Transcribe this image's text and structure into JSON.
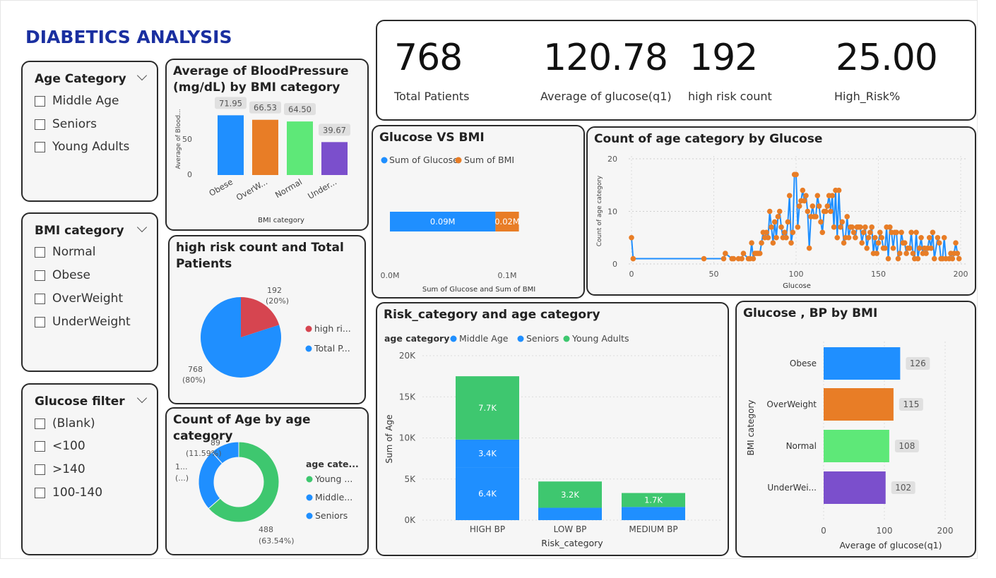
{
  "title": "DIABETICS ANALYSIS",
  "colors": {
    "blue": "#1f8fff",
    "orange": "#e87d26",
    "green": "#5ee878",
    "purple": "#7b4fcc",
    "red": "#d64550",
    "darkblue": "#1a2fa0",
    "teal_green": "#3ec76f"
  },
  "slicers": [
    {
      "title": "Age Category",
      "options": [
        "Middle Age",
        "Seniors",
        "Young Adults"
      ]
    },
    {
      "title": "BMI category",
      "options": [
        "Normal",
        "Obese",
        "OverWeight",
        "UnderWeight"
      ]
    },
    {
      "title": "Glucose filter",
      "options": [
        "(Blank)",
        "<100",
        ">140",
        "100-140"
      ]
    }
  ],
  "kpis": [
    {
      "value": "768",
      "label": "Total Patients"
    },
    {
      "value": "120.78",
      "label": "Average of glucose(q1)"
    },
    {
      "value": "192",
      "label": "high risk count"
    },
    {
      "value": "25.00",
      "label": "High_Risk%"
    }
  ],
  "bp_chart": {
    "title_line1": "Average of BloodPressure",
    "title_line2": "(mg/dL) by BMI category",
    "ylabel": "Average of Blood...",
    "xlabel": "BMI category",
    "y_ticks": [
      "0",
      "50"
    ],
    "chart_data": {
      "type": "bar",
      "categories": [
        "Obese",
        "OverW...",
        "Normal",
        "Under..."
      ],
      "values": [
        71.95,
        66.53,
        64.5,
        39.67
      ],
      "labels": [
        "71.95",
        "66.53",
        "64.50",
        "39.67"
      ],
      "ylim": [
        0,
        85
      ]
    }
  },
  "risk_pie": {
    "title_line1": "high risk count and Total",
    "title_line2": "Patients",
    "slices": [
      {
        "name": "high ri...",
        "value": 192,
        "label": "192",
        "pct": "(20%)"
      },
      {
        "name": "Total P...",
        "value": 768,
        "label": "768",
        "pct": "(80%)"
      }
    ]
  },
  "age_donut": {
    "title": "Count of Age by age category",
    "legend_title": "age cate...",
    "slices": [
      {
        "name": "Young ...",
        "value": 488,
        "label": "488",
        "pct": "(63.54%)"
      },
      {
        "name": "Middle...",
        "value": 191,
        "label": "1...",
        "pct": "(...)"
      },
      {
        "name": "Seniors",
        "value": 89,
        "label": "89",
        "pct": "(11.59%)"
      }
    ]
  },
  "glucose_bmi": {
    "title": "Glucose VS BMI",
    "legend": [
      "Sum of Glucose",
      "Sum of BMI"
    ],
    "xlabel": "Sum of Glucose and Sum of BMI",
    "x_ticks": [
      "0.0M",
      "0.1M"
    ],
    "chart_data": {
      "type": "bar",
      "orientation": "horizontal-stacked",
      "series": [
        {
          "name": "Sum of Glucose",
          "values": [
            0.09
          ],
          "label": "0.09M"
        },
        {
          "name": "Sum of BMI",
          "values": [
            0.02
          ],
          "label": "0.02M"
        }
      ],
      "xlim": [
        0,
        0.13
      ]
    }
  },
  "age_glucose": {
    "title": "Count of age category by Glucose",
    "ylabel": "Count of age category",
    "xlabel": "Glucose",
    "x_ticks": [
      "0",
      "50",
      "100",
      "150",
      "200"
    ],
    "y_ticks": [
      "0",
      "10",
      "20"
    ],
    "chart_data": {
      "type": "line",
      "x": [
        0,
        1,
        44,
        56,
        57,
        61,
        62,
        65,
        67,
        68,
        71,
        72,
        73,
        74,
        75,
        76,
        77,
        78,
        79,
        80,
        81,
        82,
        83,
        84,
        85,
        86,
        87,
        88,
        89,
        90,
        91,
        92,
        93,
        94,
        95,
        96,
        97,
        98,
        99,
        100,
        101,
        102,
        103,
        104,
        105,
        106,
        107,
        108,
        109,
        110,
        111,
        112,
        113,
        114,
        115,
        116,
        117,
        118,
        119,
        120,
        121,
        122,
        123,
        124,
        125,
        126,
        127,
        128,
        129,
        130,
        131,
        132,
        133,
        134,
        135,
        136,
        137,
        138,
        139,
        140,
        141,
        142,
        143,
        144,
        145,
        146,
        147,
        148,
        149,
        150,
        151,
        152,
        153,
        154,
        155,
        156,
        157,
        158,
        159,
        160,
        161,
        162,
        163,
        164,
        165,
        166,
        167,
        168,
        169,
        170,
        171,
        172,
        173,
        174,
        175,
        176,
        177,
        178,
        179,
        180,
        181,
        182,
        183,
        184,
        186,
        187,
        188,
        189,
        190,
        191,
        193,
        194,
        195,
        196,
        197,
        198,
        199
      ],
      "y": [
        5,
        1,
        1,
        1,
        2,
        1,
        1,
        1,
        1,
        2,
        1,
        1,
        4,
        1,
        2,
        2,
        2,
        2,
        4,
        6,
        5,
        6,
        5,
        10,
        7,
        4,
        8,
        5,
        9,
        10,
        7,
        5,
        6,
        5,
        8,
        13,
        4,
        6,
        17,
        17,
        7,
        11,
        12,
        14,
        12,
        13,
        10,
        3,
        9,
        11,
        9,
        9,
        13,
        11,
        8,
        6,
        10,
        10,
        11,
        13,
        10,
        13,
        7,
        14,
        5,
        14,
        7,
        8,
        4,
        5,
        9,
        5,
        7,
        7,
        6,
        5,
        7,
        7,
        7,
        4,
        6,
        7,
        3,
        5,
        6,
        7,
        2,
        5,
        2,
        4,
        6,
        5,
        3,
        3,
        7,
        1,
        7,
        6,
        3,
        6,
        6,
        1,
        2,
        6,
        4,
        4,
        2,
        3,
        3,
        6,
        2,
        1,
        6,
        1,
        3,
        5,
        2,
        3,
        2,
        3,
        5,
        3,
        6,
        1,
        5,
        4,
        1,
        1,
        5,
        1,
        1,
        2,
        1,
        2,
        4,
        2,
        1
      ],
      "xlim": [
        -3,
        202
      ],
      "ylim": [
        0,
        20
      ]
    }
  },
  "risk_age": {
    "title": "Risk_category and age category",
    "legend_title": "age category",
    "legend": [
      "Middle Age",
      "Seniors",
      "Young Adults"
    ],
    "xlabel": "Risk_category",
    "ylabel": "Sum of Age",
    "y_ticks": [
      "0K",
      "5K",
      "10K",
      "15K",
      "20K"
    ],
    "chart_data": {
      "type": "bar",
      "orientation": "vertical-stacked",
      "categories": [
        "HIGH BP",
        "LOW BP",
        "MEDIUM BP"
      ],
      "series": [
        {
          "name": "Middle Age",
          "values": [
            6400,
            0,
            0
          ],
          "labels": [
            "6.4K",
            "",
            ""
          ]
        },
        {
          "name": "Seniors",
          "values": [
            3400,
            1500,
            1600
          ],
          "labels": [
            "3.4K",
            "",
            ""
          ]
        },
        {
          "name": "Young Adults",
          "values": [
            7700,
            3200,
            1700
          ],
          "labels": [
            "7.7K",
            "3.2K",
            "1.7K"
          ]
        }
      ],
      "ylim": [
        0,
        20000
      ]
    }
  },
  "glucose_bp_bmi": {
    "title": "Glucose , BP by BMI",
    "ylabel": "BMI category",
    "xlabel": "Average of glucose(q1)",
    "x_ticks": [
      "0",
      "100",
      "200"
    ],
    "chart_data": {
      "type": "bar",
      "orientation": "horizontal",
      "categories": [
        "Obese",
        "OverWeight",
        "Normal",
        "UnderWei..."
      ],
      "values": [
        126,
        115,
        108,
        102
      ],
      "labels": [
        "126",
        "115",
        "108",
        "102"
      ],
      "xlim": [
        0,
        225
      ]
    }
  }
}
